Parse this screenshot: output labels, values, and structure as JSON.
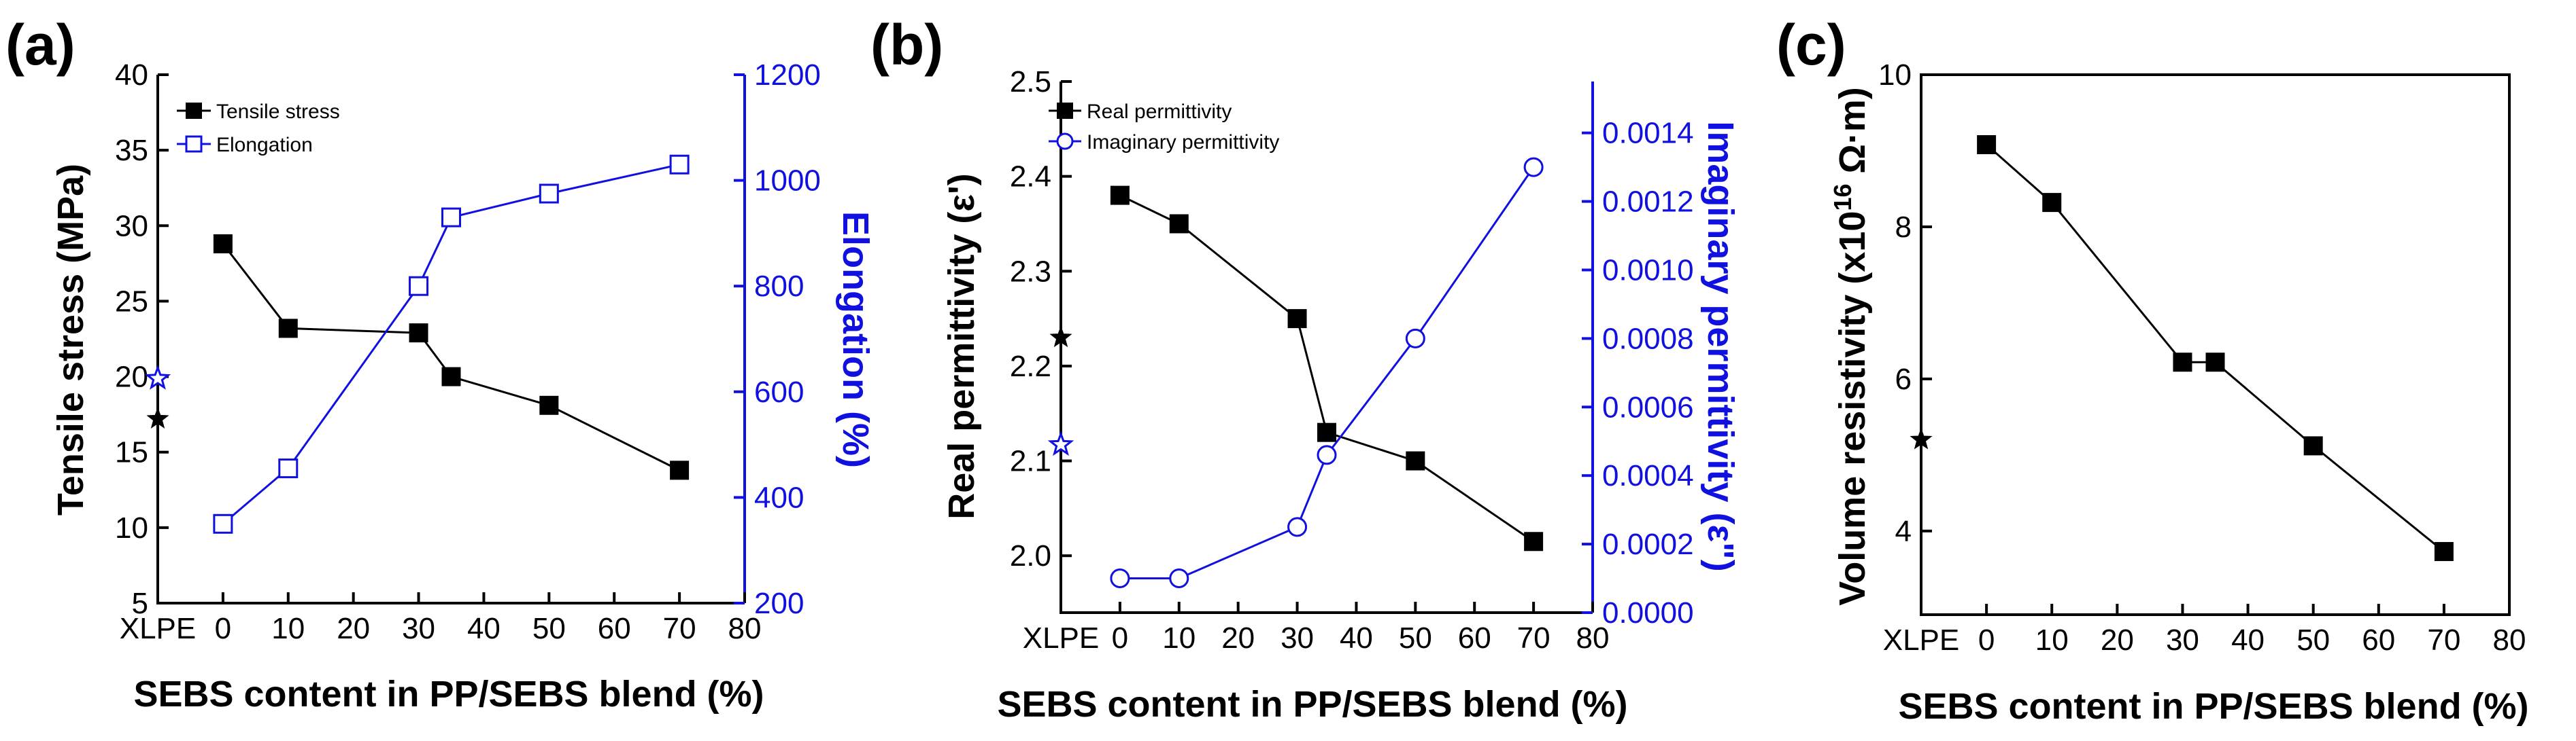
{
  "chart_data": [
    {
      "type": "line",
      "panel_label": "(a)",
      "xlabel": "SEBS content in PP/SEBS blend (%)",
      "x_tick_labels": [
        "XLPE",
        "0",
        "10",
        "20",
        "30",
        "40",
        "50",
        "60",
        "70",
        "80"
      ],
      "xlim": [
        -10,
        80
      ],
      "ylabel_left": "Tensile stress (MPa)",
      "ylabel_right": "Elongation (%)",
      "ylim_left": [
        5,
        40
      ],
      "ylim_right": [
        200,
        1200
      ],
      "yticks_left": [
        "5",
        "10",
        "15",
        "20",
        "25",
        "30",
        "35",
        "40"
      ],
      "yticks_right": [
        "200",
        "400",
        "600",
        "800",
        "1000",
        "1200"
      ],
      "series": [
        {
          "name": "Tensile stress",
          "axis": "left",
          "color": "#000000",
          "marker": "filled-square",
          "x": [
            0,
            10,
            30,
            35,
            50,
            70
          ],
          "values": [
            28.8,
            23.2,
            22.9,
            20.0,
            18.1,
            13.8
          ]
        },
        {
          "name": "Elongation",
          "axis": "right",
          "color": "#1010e0",
          "marker": "open-square",
          "x": [
            0,
            10,
            30,
            35,
            50,
            70
          ],
          "values": [
            350,
            455,
            800,
            930,
            975,
            1030
          ]
        }
      ],
      "xlpe_points": [
        {
          "series": "Tensile stress",
          "axis": "left",
          "value": 17.2,
          "marker": "filled-star",
          "color": "#000000"
        },
        {
          "series": "Elongation",
          "axis": "right",
          "value": 625,
          "marker": "open-star",
          "color": "#1010e0"
        }
      ],
      "legend": {
        "position": "top-left",
        "entries": [
          "Tensile stress",
          "Elongation"
        ]
      }
    },
    {
      "type": "line",
      "panel_label": "(b)",
      "xlabel": "SEBS content in PP/SEBS blend (%)",
      "x_tick_labels": [
        "XLPE",
        "0",
        "10",
        "20",
        "30",
        "40",
        "50",
        "60",
        "70",
        "80"
      ],
      "xlim": [
        -10,
        80
      ],
      "ylabel_left": "Real permittivity (ε')",
      "ylabel_right": "Imaginary permittivity (ε\")",
      "ylim_left": [
        1.94,
        2.5
      ],
      "ylim_right": [
        0,
        0.00155
      ],
      "yticks_left": [
        "2.0",
        "2.1",
        "2.2",
        "2.3",
        "2.4",
        "2.5"
      ],
      "yticks_right": [
        "0.0000",
        "0.0002",
        "0.0004",
        "0.0006",
        "0.0008",
        "0.0010",
        "0.0012",
        "0.0014"
      ],
      "series": [
        {
          "name": "Real permittivity",
          "axis": "left",
          "color": "#000000",
          "marker": "filled-square",
          "x": [
            0,
            10,
            30,
            35,
            50,
            70
          ],
          "values": [
            2.38,
            2.35,
            2.25,
            2.13,
            2.1,
            2.015
          ]
        },
        {
          "name": "Imaginary permittivity",
          "axis": "right",
          "color": "#1010e0",
          "marker": "open-circle",
          "x": [
            0,
            10,
            30,
            35,
            50,
            70
          ],
          "values": [
            0.0001,
            0.0001,
            0.00025,
            0.00046,
            0.0008,
            0.0013
          ]
        }
      ],
      "xlpe_points": [
        {
          "series": "Real permittivity",
          "axis": "left",
          "value": 2.23,
          "marker": "filled-star",
          "color": "#000000"
        },
        {
          "series": "Imaginary permittivity",
          "axis": "right",
          "value": 0.00049,
          "marker": "open-star",
          "color": "#1010e0"
        }
      ],
      "legend": {
        "position": "top-left",
        "entries": [
          "Real permittivity",
          "Imaginary permittivity"
        ]
      }
    },
    {
      "type": "line",
      "panel_label": "(c)",
      "xlabel": "SEBS content in PP/SEBS blend (%)",
      "x_tick_labels": [
        "XLPE",
        "0",
        "10",
        "20",
        "30",
        "40",
        "50",
        "60",
        "70",
        "80"
      ],
      "xlim": [
        -10,
        80
      ],
      "ylabel_left": "Volume resistivity (x10",
      "ylabel_superscript": "16",
      "ylabel_unit": " Ω·m)",
      "ylim_left": [
        2.9,
        10
      ],
      "yticks_left": [
        "4",
        "6",
        "8",
        "10"
      ],
      "series": [
        {
          "name": "Volume resistivity",
          "axis": "left",
          "color": "#000000",
          "marker": "filled-square",
          "x": [
            0,
            10,
            30,
            35,
            50,
            70
          ],
          "values": [
            9.08,
            8.32,
            6.22,
            6.22,
            5.12,
            3.73
          ]
        }
      ],
      "xlpe_points": [
        {
          "series": "Volume resistivity",
          "axis": "left",
          "value": 5.2,
          "marker": "filled-star",
          "color": "#000000"
        }
      ]
    }
  ]
}
